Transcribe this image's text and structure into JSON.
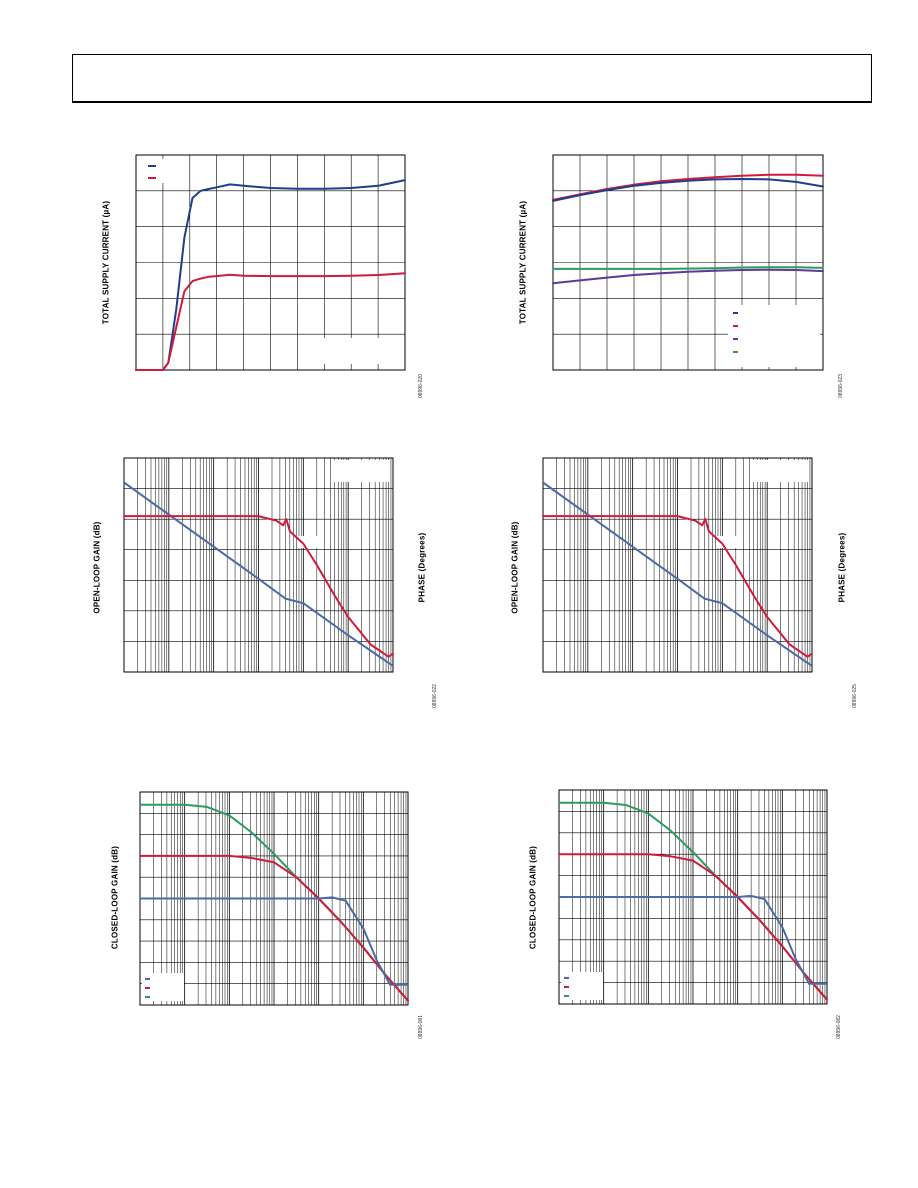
{
  "page": {
    "background": "#ffffff"
  },
  "colors": {
    "blue": "#1f3f8c",
    "red": "#d01a3c",
    "purple": "#5a3a9a",
    "green": "#2e9a5e",
    "steel": "#4a6aa8"
  },
  "charts": [
    {
      "id": "p1",
      "type": "line",
      "ylabel": "TOTAL SUPPLY CURRENT (µA)",
      "fig_id": "08996-020",
      "x_scale": "linear",
      "xlim": [
        0,
        10
      ],
      "ylim": [
        0,
        6
      ],
      "vgrid": 10,
      "hgrid": 6,
      "legend": {
        "position": "top-left",
        "colors": [
          "blue",
          "red"
        ]
      },
      "series": [
        {
          "color": "blue",
          "x": [
            0,
            1,
            1.2,
            1.5,
            1.8,
            2.1,
            2.4,
            2.7,
            3.0,
            3.5,
            4.0,
            5,
            6,
            7,
            8,
            9,
            10
          ],
          "y": [
            0,
            0,
            0.2,
            1.7,
            3.7,
            4.8,
            5.0,
            5.05,
            5.1,
            5.18,
            5.14,
            5.08,
            5.06,
            5.06,
            5.08,
            5.14,
            5.3
          ]
        },
        {
          "color": "red",
          "x": [
            0,
            1,
            1.2,
            1.5,
            1.8,
            2.1,
            2.4,
            2.7,
            3.0,
            3.5,
            4.0,
            5,
            6,
            7,
            8,
            9,
            10
          ],
          "y": [
            0,
            0,
            0.2,
            1.2,
            2.2,
            2.48,
            2.55,
            2.6,
            2.62,
            2.66,
            2.63,
            2.62,
            2.62,
            2.62,
            2.63,
            2.65,
            2.7
          ]
        }
      ]
    },
    {
      "id": "p2",
      "type": "line",
      "ylabel": "TOTAL SUPPLY CURRENT (µA)",
      "fig_id": "08996-023",
      "x_scale": "linear",
      "xlim": [
        0,
        10
      ],
      "ylim": [
        0,
        6
      ],
      "vgrid": 10,
      "hgrid": 6,
      "legend": {
        "position": "bottom-right",
        "colors": [
          "blue",
          "red",
          "purple",
          "green"
        ]
      },
      "series": [
        {
          "color": "red",
          "x": [
            0,
            1,
            2,
            3,
            4,
            5,
            6,
            7,
            8,
            9,
            10
          ],
          "y": [
            4.75,
            4.9,
            5.05,
            5.17,
            5.27,
            5.33,
            5.38,
            5.42,
            5.45,
            5.45,
            5.42
          ]
        },
        {
          "color": "blue",
          "x": [
            0,
            1,
            2,
            3,
            4,
            5,
            6,
            7,
            8,
            9,
            10
          ],
          "y": [
            4.72,
            4.88,
            5.02,
            5.14,
            5.22,
            5.28,
            5.32,
            5.33,
            5.32,
            5.25,
            5.12
          ]
        },
        {
          "color": "green",
          "x": [
            0,
            1,
            2,
            3,
            4,
            5,
            6,
            7,
            8,
            9,
            10
          ],
          "y": [
            2.82,
            2.82,
            2.82,
            2.82,
            2.82,
            2.83,
            2.84,
            2.86,
            2.87,
            2.87,
            2.85
          ]
        },
        {
          "color": "purple",
          "x": [
            0,
            1,
            2,
            3,
            4,
            5,
            6,
            7,
            8,
            9,
            10
          ],
          "y": [
            2.42,
            2.5,
            2.58,
            2.65,
            2.7,
            2.74,
            2.77,
            2.79,
            2.8,
            2.79,
            2.76
          ]
        }
      ]
    },
    {
      "id": "p3",
      "type": "line",
      "ylabel": "OPEN-LOOP GAIN (dB)",
      "ylabel2": "PHASE (Degrees)",
      "fig_id": "08996-022",
      "x_scale": "log",
      "xlim": [
        0,
        6
      ],
      "ylim": [
        0,
        7
      ],
      "hgrid": 7,
      "legend": {
        "position": "top-right",
        "colors": []
      },
      "series": [
        {
          "color": "steel",
          "x": [
            0,
            1,
            2,
            3,
            3.6,
            4,
            5,
            6
          ],
          "y": [
            6.2,
            5.15,
            4.1,
            3.05,
            2.4,
            2.25,
            1.2,
            0.2
          ]
        },
        {
          "color": "red",
          "x": [
            0,
            1,
            2,
            3,
            3.4,
            3.55,
            3.62,
            3.7,
            4,
            4.3,
            4.7,
            5,
            5.5,
            5.9,
            6
          ],
          "y": [
            5.1,
            5.1,
            5.1,
            5.1,
            4.95,
            4.8,
            5.0,
            4.6,
            4.2,
            3.5,
            2.5,
            1.8,
            0.9,
            0.5,
            0.6
          ]
        }
      ]
    },
    {
      "id": "p4",
      "type": "line",
      "ylabel": "OPEN-LOOP GAIN (dB)",
      "ylabel2": "PHASE (Degrees)",
      "fig_id": "08996-025",
      "x_scale": "log",
      "xlim": [
        0,
        6
      ],
      "ylim": [
        0,
        7
      ],
      "hgrid": 7,
      "legend": {
        "position": "top-right",
        "colors": []
      },
      "series": [
        {
          "color": "steel",
          "x": [
            0,
            1,
            2,
            3,
            3.6,
            4,
            5,
            6
          ],
          "y": [
            6.2,
            5.15,
            4.1,
            3.05,
            2.4,
            2.25,
            1.2,
            0.2
          ]
        },
        {
          "color": "red",
          "x": [
            0,
            1,
            2,
            3,
            3.4,
            3.55,
            3.62,
            3.7,
            4,
            4.3,
            4.7,
            5,
            5.5,
            5.9,
            6
          ],
          "y": [
            5.1,
            5.1,
            5.1,
            5.1,
            4.95,
            4.8,
            5.0,
            4.6,
            4.2,
            3.5,
            2.5,
            1.8,
            0.9,
            0.5,
            0.6
          ]
        }
      ]
    },
    {
      "id": "p5",
      "type": "line",
      "ylabel": "CLOSED-LOOP GAIN (dB)",
      "fig_id": "08996-081",
      "x_scale": "log",
      "xlim": [
        0,
        6
      ],
      "ylim": [
        0,
        10
      ],
      "hgrid": 10,
      "legend": {
        "position": "bottom-left",
        "colors": [
          "steel",
          "red",
          "green"
        ]
      },
      "series": [
        {
          "color": "green",
          "x": [
            0,
            1,
            1.5,
            2,
            2.5,
            3,
            3.5,
            4,
            4.5,
            5,
            5.5,
            6
          ],
          "y": [
            9.4,
            9.4,
            9.3,
            8.9,
            8.1,
            7.1,
            6.0,
            5.0,
            3.9,
            2.7,
            1.4,
            0.2
          ]
        },
        {
          "color": "red",
          "x": [
            0,
            1,
            1.5,
            2,
            2.5,
            3,
            3.5,
            4,
            4.5,
            5,
            5.5,
            6
          ],
          "y": [
            7.0,
            7.0,
            7.0,
            7.0,
            6.9,
            6.7,
            6.0,
            5.0,
            3.9,
            2.7,
            1.4,
            0.2
          ]
        },
        {
          "color": "steel",
          "x": [
            0,
            1,
            2,
            3,
            3.5,
            4,
            4.3,
            4.6,
            5,
            5.3,
            5.6,
            6
          ],
          "y": [
            5.0,
            5.0,
            5.0,
            5.0,
            5.0,
            5.0,
            5.05,
            4.9,
            3.6,
            2.1,
            0.95,
            0.95
          ]
        }
      ]
    },
    {
      "id": "p6",
      "type": "line",
      "ylabel": "CLOSED-LOOP GAIN (dB)",
      "fig_id": "08996-082",
      "x_scale": "log",
      "xlim": [
        0,
        6
      ],
      "ylim": [
        0,
        10
      ],
      "hgrid": 10,
      "legend": {
        "position": "bottom-left",
        "colors": [
          "steel",
          "red",
          "green"
        ]
      },
      "series": [
        {
          "color": "green",
          "x": [
            0,
            1,
            1.5,
            2,
            2.5,
            3,
            3.5,
            4,
            4.5,
            5,
            5.5,
            6
          ],
          "y": [
            9.4,
            9.4,
            9.3,
            8.9,
            8.1,
            7.1,
            6.0,
            5.0,
            3.9,
            2.7,
            1.4,
            0.2
          ]
        },
        {
          "color": "red",
          "x": [
            0,
            1,
            1.5,
            2,
            2.5,
            3,
            3.5,
            4,
            4.5,
            5,
            5.5,
            6
          ],
          "y": [
            7.0,
            7.0,
            7.0,
            7.0,
            6.9,
            6.7,
            6.0,
            5.0,
            3.9,
            2.7,
            1.4,
            0.2
          ]
        },
        {
          "color": "steel",
          "x": [
            0,
            1,
            2,
            3,
            3.5,
            4,
            4.3,
            4.6,
            5,
            5.3,
            5.6,
            6
          ],
          "y": [
            5.0,
            5.0,
            5.0,
            5.0,
            5.0,
            5.0,
            5.05,
            4.9,
            3.6,
            2.1,
            0.95,
            0.95
          ]
        }
      ]
    }
  ]
}
